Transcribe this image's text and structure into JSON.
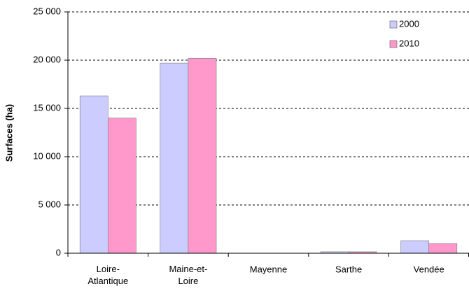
{
  "chart_data": {
    "type": "bar",
    "ylabel": "Surfaces (ha)",
    "categories": [
      "Loire-Atlantique",
      "Maine-et-Loire",
      "Mayenne",
      "Sarthe",
      "Vendée"
    ],
    "series": [
      {
        "name": "2000",
        "color": "#ccccff",
        "values": [
          16300,
          19700,
          0,
          150,
          1300
        ]
      },
      {
        "name": "2010",
        "color": "#ff99cc",
        "values": [
          14000,
          20200,
          0,
          150,
          1000
        ]
      }
    ],
    "ylim": [
      0,
      25000
    ],
    "yticks": [
      0,
      {
        "value": 5000,
        "label": "5 000"
      },
      {
        "value": 10000,
        "label": "10 000"
      },
      {
        "value": 15000,
        "label": "15 000"
      },
      {
        "value": 20000,
        "label": "20 000"
      },
      {
        "value": 25000,
        "label": "25 000"
      }
    ],
    "grid": true,
    "legend": "top-right"
  }
}
